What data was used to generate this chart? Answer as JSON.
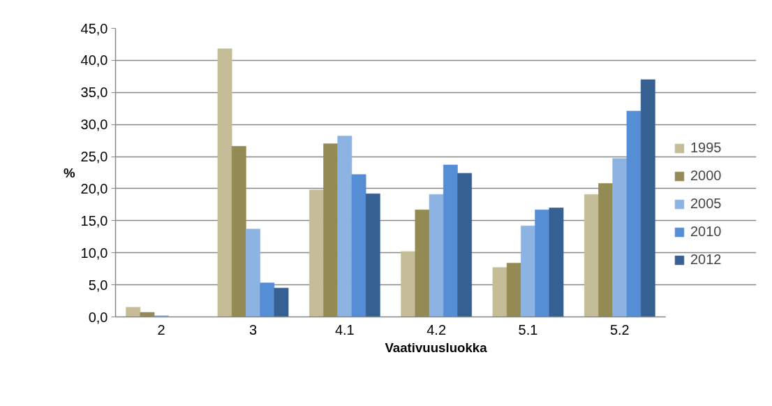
{
  "chart_data": {
    "type": "bar",
    "xlabel": "Vaativuusluokka",
    "ylabel": "%",
    "categories": [
      "2",
      "3",
      "4.1",
      "4.2",
      "5.1",
      "5.2"
    ],
    "series": [
      {
        "name": "1995",
        "color": "#c4bd97",
        "values": [
          1.5,
          41.8,
          19.8,
          10.2,
          7.7,
          19.1
        ]
      },
      {
        "name": "2000",
        "color": "#948a54",
        "values": [
          0.7,
          26.6,
          27.0,
          16.7,
          8.4,
          20.8
        ]
      },
      {
        "name": "2005",
        "color": "#8db3e2",
        "values": [
          0.2,
          13.7,
          28.2,
          19.1,
          14.2,
          24.7
        ]
      },
      {
        "name": "2010",
        "color": "#558ed5",
        "values": [
          0,
          5.3,
          22.2,
          23.7,
          16.7,
          32.1
        ]
      },
      {
        "name": "2012",
        "color": "#376092",
        "values": [
          0,
          4.5,
          19.2,
          22.4,
          17.0,
          37.0
        ]
      }
    ],
    "ylim": [
      0,
      45
    ],
    "yticks": [
      {
        "value": 0,
        "label": "0,0"
      },
      {
        "value": 5,
        "label": "5,0"
      },
      {
        "value": 10,
        "label": "10,0"
      },
      {
        "value": 15,
        "label": "15,0"
      },
      {
        "value": 20,
        "label": "20,0"
      },
      {
        "value": 25,
        "label": "25,0"
      },
      {
        "value": 30,
        "label": "30,0"
      },
      {
        "value": 35,
        "label": "35,0"
      },
      {
        "value": 40,
        "label": "40,0"
      },
      {
        "value": 45,
        "label": "45,0"
      }
    ],
    "grid": "y",
    "legend": "right"
  }
}
